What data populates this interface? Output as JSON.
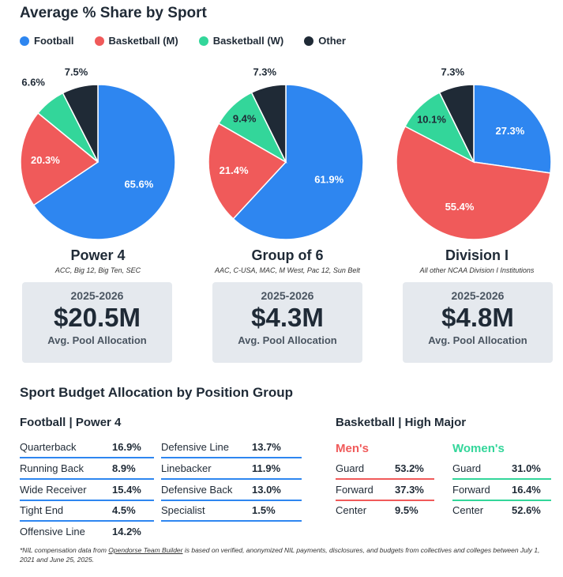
{
  "title": "Average % Share by Sport",
  "legend": [
    {
      "label": "Football",
      "color": "#2e86f0"
    },
    {
      "label": "Basketball (M)",
      "color": "#f05a5a"
    },
    {
      "label": "Basketball (W)",
      "color": "#33d69a"
    },
    {
      "label": "Other",
      "color": "#1f2a36"
    }
  ],
  "chart_data": [
    {
      "type": "pie",
      "title": "Power 4",
      "subtitle": "ACC, Big 12, Big Ten, SEC",
      "categories": [
        "Football",
        "Basketball (M)",
        "Basketball (W)",
        "Other"
      ],
      "values": [
        65.6,
        20.3,
        6.6,
        7.5
      ],
      "labels": [
        "65.6%",
        "20.3%",
        "6.6%",
        "7.5%"
      ]
    },
    {
      "type": "pie",
      "title": "Group of 6",
      "subtitle": "AAC, C-USA, MAC, M West, Pac 12, Sun Belt",
      "categories": [
        "Football",
        "Basketball (M)",
        "Basketball (W)",
        "Other"
      ],
      "values": [
        61.9,
        21.4,
        9.4,
        7.3
      ],
      "labels": [
        "61.9%",
        "21.4%",
        "9.4%",
        "7.3%"
      ]
    },
    {
      "type": "pie",
      "title": "Division I",
      "subtitle": "All other NCAA Division I Institutions",
      "categories": [
        "Football",
        "Basketball (M)",
        "Basketball (W)",
        "Other"
      ],
      "values": [
        27.3,
        55.4,
        10.1,
        7.3
      ],
      "labels": [
        "27.3%",
        "55.4%",
        "10.1%",
        "7.3%"
      ]
    }
  ],
  "cards": [
    {
      "year": "2025-2026",
      "value": "$20.5M",
      "sub": "Avg. Pool Allocation"
    },
    {
      "year": "2025-2026",
      "value": "$4.3M",
      "sub": "Avg. Pool Allocation"
    },
    {
      "year": "2025-2026",
      "value": "$4.8M",
      "sub": "Avg. Pool Allocation"
    }
  ],
  "section_title": "Sport Budget Allocation by Position Group",
  "football": {
    "title": "Football | Power 4",
    "col1": [
      {
        "name": "Quarterback",
        "value": "16.9%"
      },
      {
        "name": "Running Back",
        "value": "8.9%"
      },
      {
        "name": "Wide Receiver",
        "value": "15.4%"
      },
      {
        "name": "Tight End",
        "value": "4.5%"
      },
      {
        "name": "Offensive Line",
        "value": "14.2%"
      }
    ],
    "col2": [
      {
        "name": "Defensive Line",
        "value": "13.7%"
      },
      {
        "name": "Linebacker",
        "value": "11.9%"
      },
      {
        "name": "Defensive Back",
        "value": "13.0%"
      },
      {
        "name": "Specialist",
        "value": "1.5%"
      }
    ]
  },
  "basketball": {
    "title": "Basketball | High Major",
    "men_label": "Men's",
    "women_label": "Women's",
    "men": [
      {
        "name": "Guard",
        "value": "53.2%"
      },
      {
        "name": "Forward",
        "value": "37.3%"
      },
      {
        "name": "Center",
        "value": "9.5%"
      }
    ],
    "women": [
      {
        "name": "Guard",
        "value": "31.0%"
      },
      {
        "name": "Forward",
        "value": "16.4%"
      },
      {
        "name": "Center",
        "value": "52.6%"
      }
    ]
  },
  "footnote": {
    "prefix": "*NIL compensation data from ",
    "link": "Opendorse Team Builder",
    "suffix": " is based on verified, anonymized NIL payments, disclosures, and budgets from collectives and colleges between July 1, 2021 and June 25, 2025."
  }
}
